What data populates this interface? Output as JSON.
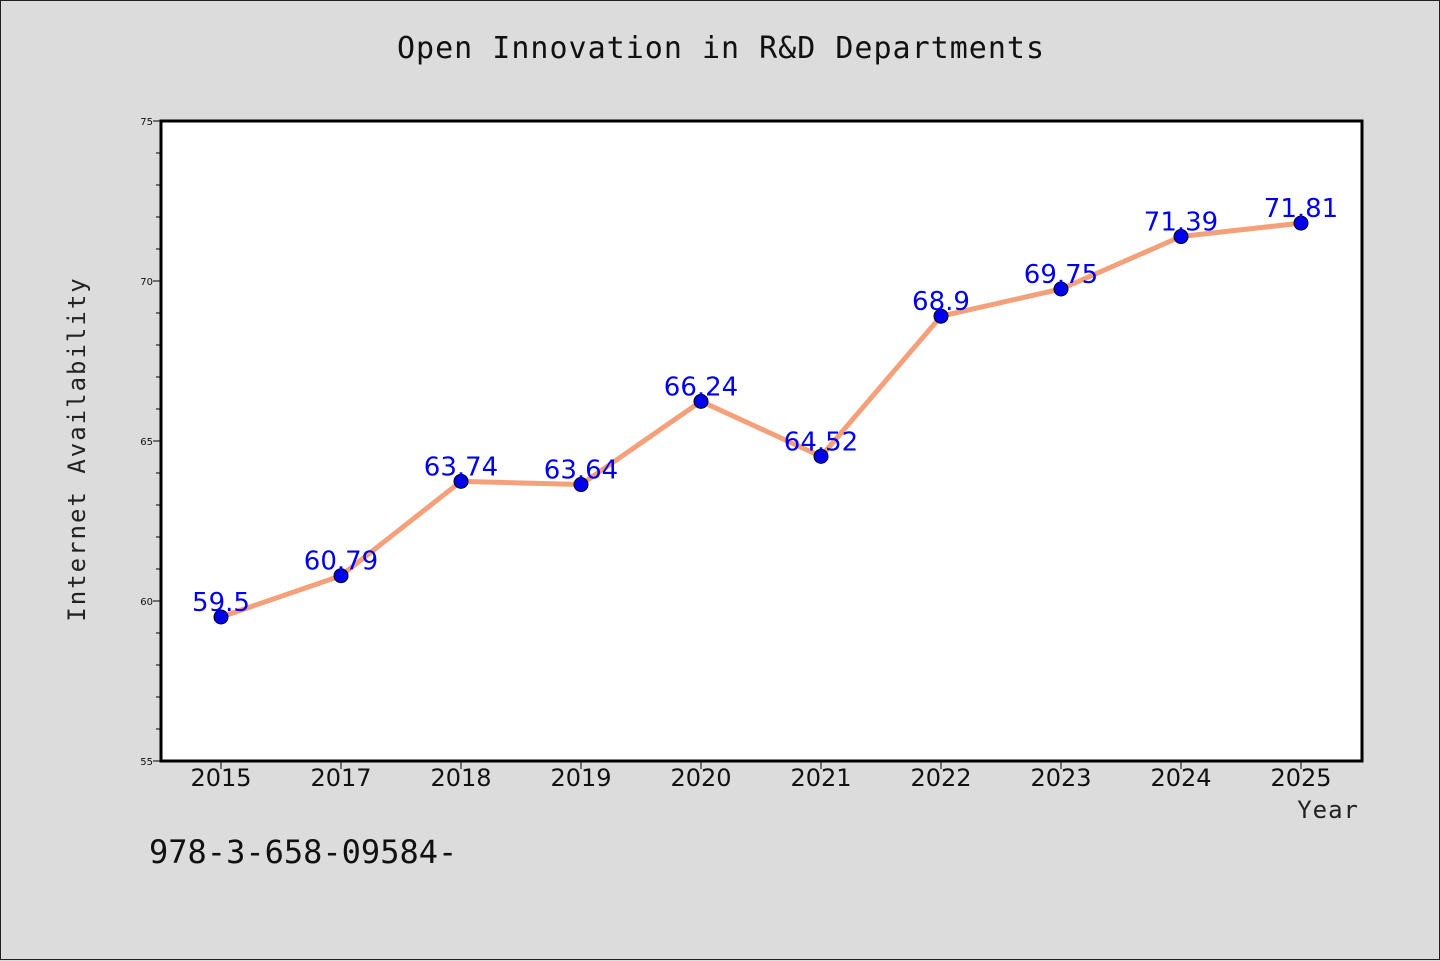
{
  "chart_data": {
    "type": "line",
    "title": "Open Innovation in R&D Departments",
    "xlabel": "Year",
    "ylabel": "Internet Availability",
    "categories": [
      "2015",
      "2017",
      "2018",
      "2019",
      "2020",
      "2021",
      "2022",
      "2023",
      "2024",
      "2025"
    ],
    "series": [
      {
        "values": [
          59.5,
          60.79,
          63.74,
          63.64,
          66.24,
          64.52,
          68.9,
          69.75,
          71.39,
          71.81
        ],
        "data_labels": [
          "59.5",
          "60.79",
          "63.74",
          "63.64",
          "66.24",
          "64.52",
          "68.9",
          "69.75",
          "71.39",
          "71.81"
        ],
        "line_color": "#f4a07a",
        "marker_color": "#0000ee"
      }
    ],
    "ylim": [
      55,
      75
    ],
    "yticks": [
      "55",
      "60",
      "65",
      "70",
      "75"
    ],
    "grid": false,
    "legend": "none"
  },
  "footer_text": "978-3-658-09584-",
  "colors": {
    "background": "#dcdcdc",
    "plot_background": "#ffffff",
    "label_color": "#0000ee"
  }
}
